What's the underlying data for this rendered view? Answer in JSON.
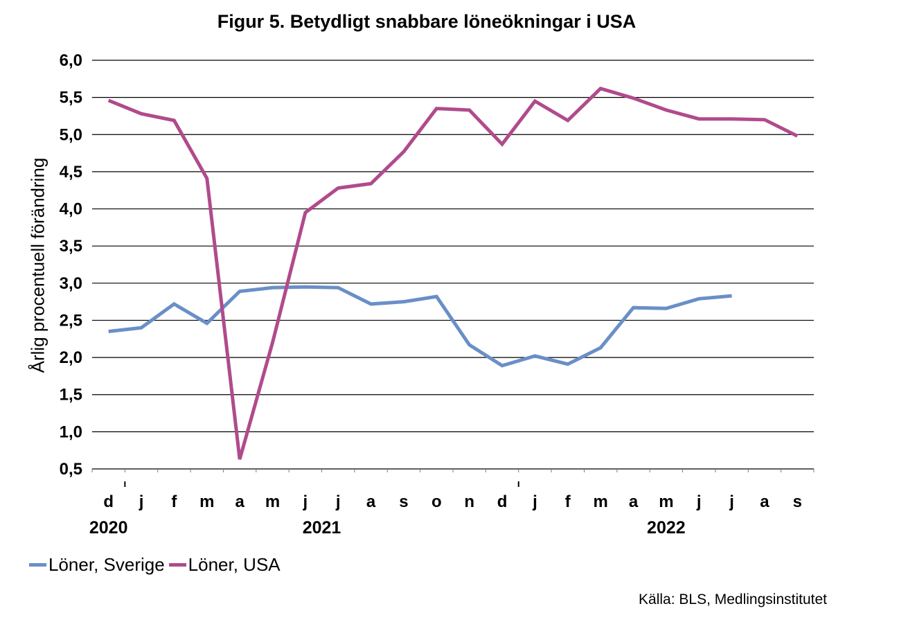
{
  "chart_data": {
    "type": "line",
    "title": "Figur 5. Betydligt snabbare löneökningar i USA",
    "ylabel": "Årlig procentuell förändring",
    "xlabel": "",
    "ylim": [
      0.5,
      6.0
    ],
    "yticks": [
      "0,5",
      "1,0",
      "1,5",
      "2,0",
      "2,5",
      "3,0",
      "3,5",
      "4,0",
      "4,5",
      "5,0",
      "5,5",
      "6,0"
    ],
    "ytick_values": [
      0.5,
      1.0,
      1.5,
      2.0,
      2.5,
      3.0,
      3.5,
      4.0,
      4.5,
      5.0,
      5.5,
      6.0
    ],
    "categories": [
      "d",
      "j",
      "f",
      "m",
      "a",
      "m",
      "j",
      "j",
      "a",
      "s",
      "o",
      "n",
      "d",
      "j",
      "f",
      "m",
      "a",
      "m",
      "j",
      "j",
      "a",
      "s"
    ],
    "years": [
      {
        "label": "2020",
        "index": 0
      },
      {
        "label": "2021",
        "index": 6.5
      },
      {
        "label": "2022",
        "index": 17
      }
    ],
    "year_boundaries": [
      0.5,
      12.5
    ],
    "grid": true,
    "legend_position": "bottom-left",
    "series": [
      {
        "name": "Löner, Sverige",
        "color": "#6a8fc7",
        "values": [
          2.35,
          2.4,
          2.72,
          2.46,
          2.89,
          2.94,
          2.95,
          2.94,
          2.72,
          2.75,
          2.82,
          2.17,
          1.89,
          2.02,
          1.91,
          2.13,
          2.67,
          2.66,
          2.79,
          2.83,
          null,
          null
        ]
      },
      {
        "name": "Löner, USA",
        "color": "#b04b8c",
        "values": [
          5.46,
          5.28,
          5.19,
          4.41,
          0.63,
          2.2,
          3.95,
          4.28,
          4.34,
          4.77,
          5.35,
          5.33,
          4.87,
          5.45,
          5.19,
          5.62,
          5.49,
          5.33,
          5.21,
          5.21,
          5.2,
          4.98
        ]
      }
    ]
  },
  "source": "Källa: BLS, Medlingsinstitutet"
}
